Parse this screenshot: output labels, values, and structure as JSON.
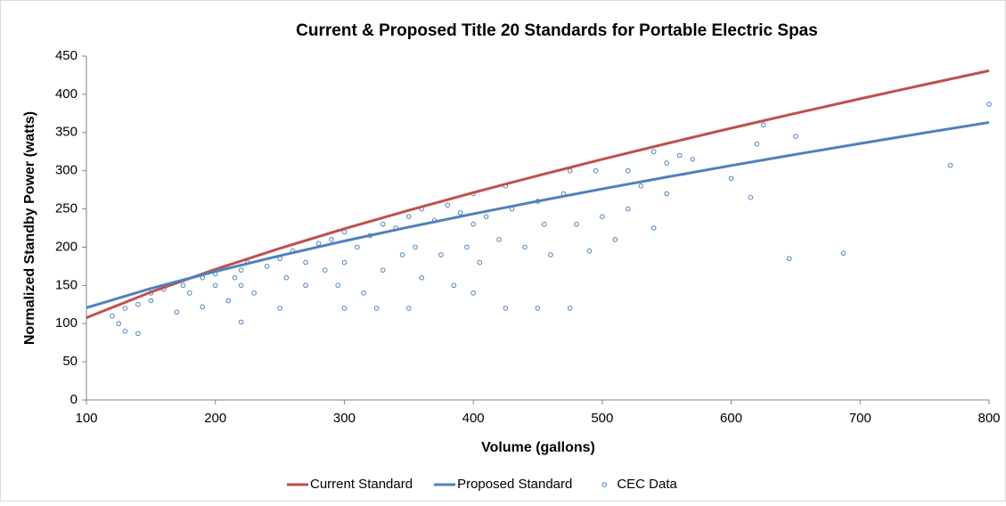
{
  "chart_data": {
    "type": "scatter",
    "title": "Current & Proposed Title 20 Standards for Portable Electric Spas",
    "x_label": "Volume (gallons)",
    "y_label": "Normalized Standby Power (watts)",
    "xlim": [
      100,
      800
    ],
    "xticks": [
      100,
      200,
      300,
      400,
      500,
      600,
      700,
      800
    ],
    "ylim": [
      0,
      450
    ],
    "yticks": [
      0,
      50,
      100,
      150,
      200,
      250,
      300,
      350,
      400,
      450
    ],
    "legend": "bottom",
    "series": [
      {
        "name": "Current Standard",
        "type": "line",
        "color": "#c0504d",
        "x": [
          100,
          150,
          200,
          250,
          300,
          350,
          400,
          450,
          500,
          550,
          600,
          650,
          700,
          750,
          800
        ],
        "values": [
          107.7,
          141.2,
          171.0,
          198.4,
          224.1,
          248.3,
          271.4,
          293.6,
          315.0,
          335.6,
          355.7,
          375.2,
          394.2,
          412.7,
          430.9
        ]
      },
      {
        "name": "Proposed Standard",
        "type": "line",
        "color": "#4f81bd",
        "x": [
          100,
          150,
          200,
          250,
          300,
          350,
          400,
          450,
          500,
          550,
          600,
          650,
          700,
          750,
          800
        ],
        "values": [
          120.8,
          145.9,
          168.3,
          188.8,
          208.1,
          226.2,
          243.6,
          260.2,
          276.2,
          291.7,
          306.8,
          321.4,
          335.6,
          349.6,
          363.2
        ]
      },
      {
        "name": "CEC Data",
        "type": "scatter",
        "color": "#4f81bd",
        "x": [
          120,
          125,
          130,
          130,
          140,
          140,
          150,
          150,
          160,
          170,
          175,
          180,
          190,
          190,
          200,
          200,
          210,
          215,
          220,
          220,
          220,
          225,
          230,
          240,
          250,
          250,
          255,
          260,
          270,
          270,
          280,
          285,
          290,
          295,
          300,
          300,
          300,
          310,
          315,
          320,
          325,
          330,
          330,
          340,
          345,
          350,
          350,
          355,
          360,
          360,
          370,
          375,
          380,
          385,
          390,
          395,
          400,
          400,
          400,
          405,
          410,
          420,
          425,
          425,
          430,
          440,
          450,
          450,
          455,
          460,
          470,
          475,
          475,
          480,
          490,
          495,
          500,
          510,
          520,
          520,
          530,
          540,
          540,
          550,
          550,
          560,
          570,
          600,
          615,
          620,
          625,
          645,
          650,
          687,
          770,
          800
        ],
        "values": [
          110,
          100,
          90,
          120,
          87,
          125,
          130,
          140,
          145,
          115,
          150,
          140,
          160,
          122,
          150,
          165,
          130,
          160,
          102,
          170,
          150,
          180,
          140,
          175,
          185,
          120,
          160,
          195,
          180,
          150,
          205,
          170,
          210,
          150,
          220,
          120,
          180,
          200,
          140,
          215,
          120,
          230,
          170,
          225,
          190,
          240,
          120,
          200,
          250,
          160,
          235,
          190,
          255,
          150,
          245,
          200,
          270,
          230,
          140,
          180,
          240,
          210,
          280,
          120,
          250,
          200,
          260,
          120,
          230,
          190,
          270,
          300,
          120,
          230,
          195,
          300,
          240,
          210,
          300,
          250,
          280,
          325,
          225,
          310,
          270,
          320,
          315,
          290,
          265,
          335,
          360,
          185,
          345,
          192,
          307,
          387
        ]
      }
    ]
  }
}
